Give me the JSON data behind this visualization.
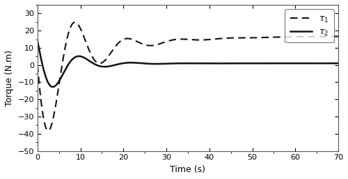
{
  "xlabel": "Time (s)",
  "ylabel": "Torque (N.m)",
  "xlim": [
    0,
    70
  ],
  "ylim": [
    -50,
    35
  ],
  "yticks": [
    -50,
    -40,
    -30,
    -20,
    -10,
    0,
    10,
    20,
    30
  ],
  "xticks": [
    0,
    10,
    20,
    30,
    40,
    50,
    60,
    70
  ],
  "tau1_color": "#111111",
  "tau2_color": "#111111",
  "tau1_style": "--",
  "tau2_style": "-",
  "tau1_lw": 1.5,
  "tau2_lw": 1.8,
  "legend_tau1": "$\\tau_1$",
  "legend_tau2": "$\\tau_2$",
  "background": "#ffffff"
}
